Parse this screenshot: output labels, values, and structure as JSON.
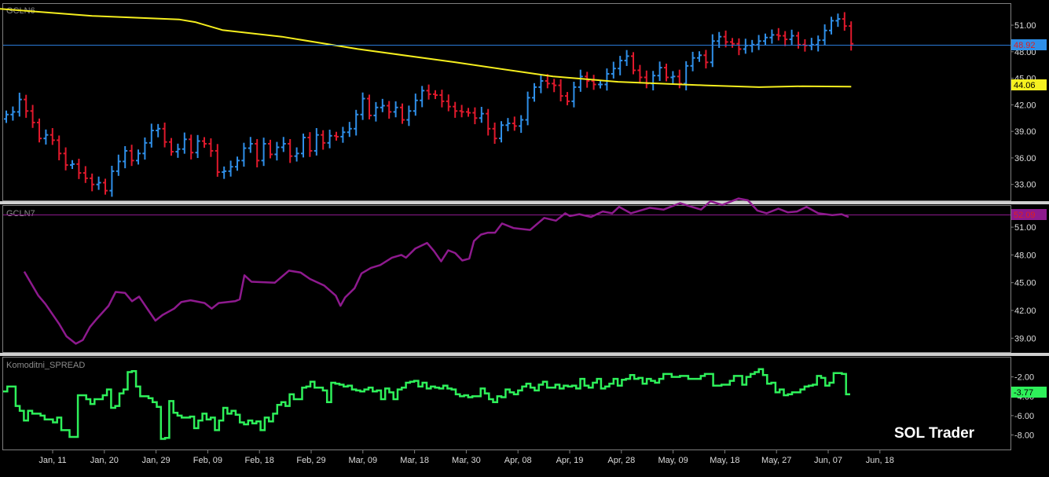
{
  "watermark": "SOL Trader",
  "colors": {
    "background": "#000000",
    "frame": "#7f7f7f",
    "separator": "#d0d0d0",
    "axis_text": "#dcdcdc",
    "up_bar": "#2f8fe8",
    "down_bar": "#e0192c",
    "ma_line": "#f5ee1e",
    "gcln6_last_line": "#2a7ad8",
    "gcln6_last_badge": "#2f8fe8",
    "ma_badge": "#f5f020",
    "gcln7_line": "#8e1a8e",
    "gcln7_badge": "#8e1a8e",
    "spread_line": "#2ef05a",
    "spread_badge": "#2ef05a",
    "watermark": "#ffffff",
    "panel_label": "#8c8c8c"
  },
  "x_axis": {
    "tick_labels": [
      "Jan, 11",
      "Jan, 20",
      "Jan, 29",
      "Feb, 09",
      "Feb, 18",
      "Feb, 29",
      "Mar, 09",
      "Mar, 18",
      "Mar, 30",
      "Apr, 08",
      "Apr, 19",
      "Apr, 28",
      "May, 09",
      "May, 18",
      "May, 27",
      "Jun, 07",
      "Jun, 18"
    ]
  },
  "chart_data": [
    {
      "type": "ohlc",
      "panel_label": "GCLN6",
      "ylim": [
        31.2,
        53.4
      ],
      "y_ticks": [
        "33.00",
        "36.00",
        "39.00",
        "42.00",
        "45.00",
        "48.00",
        "51.00"
      ],
      "last_value_label": "48.92",
      "ma_value_label": "44.06",
      "close": [
        40.9,
        41.2,
        42.6,
        41.3,
        40.0,
        38.2,
        38.6,
        38.0,
        36.5,
        35.2,
        35.3,
        34.3,
        33.7,
        33.0,
        33.2,
        32.3,
        34.5,
        35.6,
        36.8,
        35.7,
        36.5,
        37.7,
        39.1,
        39.3,
        37.8,
        36.7,
        37.0,
        38.1,
        36.6,
        37.9,
        37.6,
        36.8,
        34.4,
        34.5,
        35.0,
        35.7,
        37.1,
        37.6,
        35.7,
        37.6,
        36.4,
        37.2,
        37.6,
        36.2,
        36.5,
        38.3,
        36.8,
        38.6,
        37.7,
        38.5,
        38.4,
        38.9,
        39.3,
        40.9,
        42.7,
        40.8,
        41.7,
        41.9,
        41.2,
        41.7,
        40.3,
        41.3,
        42.5,
        43.6,
        43.2,
        43.1,
        42.4,
        41.8,
        41.3,
        41.2,
        41.1,
        40.5,
        41.0,
        39.3,
        38.2,
        39.7,
        39.9,
        39.6,
        40.3,
        42.8,
        44.0,
        44.7,
        44.4,
        44.2,
        43.0,
        42.4,
        44.0,
        45.2,
        44.7,
        44.3,
        44.3,
        45.5,
        46.1,
        47.0,
        47.5,
        45.9,
        45.1,
        44.4,
        45.3,
        46.2,
        45.1,
        45.2,
        44.4,
        46.4,
        47.3,
        47.6,
        46.8,
        49.2,
        49.7,
        49.1,
        48.9,
        48.3,
        48.7,
        48.8,
        49.2,
        49.6,
        49.9,
        49.8,
        49.4,
        49.8,
        48.8,
        48.7,
        48.8,
        49.3,
        50.4,
        51.5,
        51.7,
        50.9,
        48.9
      ],
      "moving_average": [
        {
          "x": 0,
          "y": 52.85
        },
        {
          "x": 17,
          "y": 52.05
        },
        {
          "x": 33,
          "y": 51.65
        },
        {
          "x": 36,
          "y": 51.35
        },
        {
          "x": 41,
          "y": 50.45
        },
        {
          "x": 52,
          "y": 49.7
        },
        {
          "x": 66,
          "y": 48.3
        },
        {
          "x": 84,
          "y": 46.8
        },
        {
          "x": 102,
          "y": 45.2
        },
        {
          "x": 114,
          "y": 44.6
        },
        {
          "x": 130,
          "y": 44.2
        },
        {
          "x": 140,
          "y": 44.0
        },
        {
          "x": 148,
          "y": 44.1
        },
        {
          "x": 157,
          "y": 44.06
        }
      ]
    },
    {
      "type": "line",
      "panel_label": "GCLN7",
      "ylim": [
        37.5,
        53.3
      ],
      "y_ticks": [
        "39.00",
        "42.00",
        "45.00",
        "48.00",
        "51.00"
      ],
      "last_value_label": "52.09",
      "points": [
        {
          "x": 3,
          "y": 46.2
        },
        {
          "x": 9,
          "y": 43.6
        },
        {
          "x": 12,
          "y": 42.7
        },
        {
          "x": 18,
          "y": 40.5
        },
        {
          "x": 21,
          "y": 39.2
        },
        {
          "x": 25,
          "y": 38.4
        },
        {
          "x": 28,
          "y": 38.8
        },
        {
          "x": 31,
          "y": 40.2
        },
        {
          "x": 34,
          "y": 41.1
        },
        {
          "x": 39,
          "y": 42.5
        },
        {
          "x": 42,
          "y": 44.0
        },
        {
          "x": 46,
          "y": 43.9
        },
        {
          "x": 49,
          "y": 43.0
        },
        {
          "x": 52,
          "y": 43.5
        },
        {
          "x": 56,
          "y": 42.0
        },
        {
          "x": 59,
          "y": 40.9
        },
        {
          "x": 62,
          "y": 41.5
        },
        {
          "x": 67,
          "y": 42.2
        },
        {
          "x": 70,
          "y": 42.9
        },
        {
          "x": 74,
          "y": 43.1
        },
        {
          "x": 80,
          "y": 42.8
        },
        {
          "x": 83,
          "y": 42.2
        },
        {
          "x": 86,
          "y": 42.8
        },
        {
          "x": 93,
          "y": 43.0
        },
        {
          "x": 95,
          "y": 43.2
        },
        {
          "x": 97,
          "y": 45.8
        },
        {
          "x": 100,
          "y": 45.1
        },
        {
          "x": 110,
          "y": 45.0
        },
        {
          "x": 116,
          "y": 46.3
        },
        {
          "x": 121,
          "y": 46.1
        },
        {
          "x": 125,
          "y": 45.4
        },
        {
          "x": 131,
          "y": 44.7
        },
        {
          "x": 136,
          "y": 43.6
        },
        {
          "x": 138,
          "y": 42.5
        },
        {
          "x": 140,
          "y": 43.4
        },
        {
          "x": 144,
          "y": 44.4
        },
        {
          "x": 147,
          "y": 46.0
        },
        {
          "x": 151,
          "y": 46.6
        },
        {
          "x": 155,
          "y": 46.9
        },
        {
          "x": 160,
          "y": 47.7
        },
        {
          "x": 164,
          "y": 48.0
        },
        {
          "x": 166,
          "y": 47.7
        },
        {
          "x": 170,
          "y": 48.7
        },
        {
          "x": 175,
          "y": 49.3
        },
        {
          "x": 178,
          "y": 48.4
        },
        {
          "x": 181,
          "y": 47.3
        },
        {
          "x": 184,
          "y": 48.5
        },
        {
          "x": 187,
          "y": 48.2
        },
        {
          "x": 190,
          "y": 47.4
        },
        {
          "x": 193,
          "y": 47.6
        },
        {
          "x": 195,
          "y": 49.5
        },
        {
          "x": 198,
          "y": 50.2
        },
        {
          "x": 201,
          "y": 50.4
        },
        {
          "x": 204,
          "y": 50.4
        },
        {
          "x": 207,
          "y": 51.4
        },
        {
          "x": 212,
          "y": 50.9
        },
        {
          "x": 219,
          "y": 50.7
        },
        {
          "x": 225,
          "y": 52.0
        },
        {
          "x": 230,
          "y": 51.7
        },
        {
          "x": 234,
          "y": 52.5
        },
        {
          "x": 236,
          "y": 52.2
        },
        {
          "x": 240,
          "y": 52.4
        },
        {
          "x": 245,
          "y": 52.1
        },
        {
          "x": 250,
          "y": 52.7
        },
        {
          "x": 254,
          "y": 52.5
        },
        {
          "x": 257,
          "y": 53.2
        },
        {
          "x": 262,
          "y": 52.5
        },
        {
          "x": 266,
          "y": 52.8
        },
        {
          "x": 270,
          "y": 53.1
        },
        {
          "x": 276,
          "y": 52.9
        },
        {
          "x": 283,
          "y": 53.6
        },
        {
          "x": 288,
          "y": 53.2
        },
        {
          "x": 292,
          "y": 52.9
        },
        {
          "x": 296,
          "y": 53.8
        },
        {
          "x": 301,
          "y": 53.4
        },
        {
          "x": 304,
          "y": 53.7
        },
        {
          "x": 308,
          "y": 54.1
        },
        {
          "x": 312,
          "y": 53.9
        },
        {
          "x": 316,
          "y": 52.8
        },
        {
          "x": 320,
          "y": 52.5
        },
        {
          "x": 325,
          "y": 53.0
        },
        {
          "x": 329,
          "y": 52.6
        },
        {
          "x": 333,
          "y": 52.7
        },
        {
          "x": 337,
          "y": 53.2
        },
        {
          "x": 342,
          "y": 52.5
        },
        {
          "x": 348,
          "y": 52.3
        },
        {
          "x": 352,
          "y": 52.4
        },
        {
          "x": 355,
          "y": 52.09
        }
      ]
    },
    {
      "type": "step",
      "panel_label": "Komoditni_SPREAD",
      "ylim": [
        -9.5,
        0.0
      ],
      "y_ticks": [
        "-2.00",
        "-4.00",
        "-6.00",
        "-8.00"
      ],
      "last_value_label": "-3.77",
      "values": [
        -3.5,
        -3.0,
        -3.0,
        -5.0,
        -5.5,
        -6.5,
        -5.5,
        -5.8,
        -5.8,
        -6.0,
        -6.4,
        -6.4,
        -6.7,
        -6.2,
        -7.5,
        -7.5,
        -8.2,
        -8.2,
        -3.9,
        -3.9,
        -4.3,
        -4.8,
        -4.3,
        -4.3,
        -3.9,
        -3.3,
        -5.2,
        -5.0,
        -3.7,
        -3.3,
        -1.5,
        -1.4,
        -3.0,
        -4.0,
        -4.0,
        -4.2,
        -4.6,
        -5.1,
        -8.4,
        -8.3,
        -4.5,
        -5.7,
        -6.0,
        -6.2,
        -6.2,
        -6.1,
        -7.3,
        -6.5,
        -5.8,
        -6.4,
        -6.2,
        -7.5,
        -6.5,
        -5.2,
        -5.8,
        -5.5,
        -5.9,
        -6.7,
        -6.9,
        -6.5,
        -6.8,
        -6.6,
        -7.5,
        -6.2,
        -6.6,
        -5.8,
        -4.9,
        -4.6,
        -5.0,
        -3.8,
        -4.3,
        -4.3,
        -3.1,
        -3.0,
        -2.5,
        -3.1,
        -3.1,
        -3.4,
        -4.6,
        -2.6,
        -2.7,
        -2.8,
        -3.0,
        -2.9,
        -3.3,
        -3.4,
        -3.5,
        -3.3,
        -3.1,
        -3.5,
        -3.4,
        -4.3,
        -3.2,
        -3.6,
        -4.3,
        -3.3,
        -3.1,
        -2.6,
        -2.5,
        -2.4,
        -3.0,
        -2.6,
        -3.2,
        -3.0,
        -3.1,
        -3.2,
        -2.9,
        -3.2,
        -3.3,
        -3.8,
        -4.0,
        -3.9,
        -4.1,
        -4.0,
        -4.0,
        -3.2,
        -3.7,
        -4.3,
        -4.6,
        -4.0,
        -4.1,
        -3.3,
        -3.6,
        -3.8,
        -3.4,
        -3.0,
        -2.7,
        -3.1,
        -3.4,
        -2.8,
        -2.5,
        -3.1,
        -3.1,
        -2.8,
        -3.2,
        -2.9,
        -3.0,
        -2.9,
        -3.2,
        -2.2,
        -2.9,
        -3.1,
        -2.6,
        -2.2,
        -3.2,
        -3.0,
        -2.7,
        -2.2,
        -2.9,
        -2.3,
        -2.2,
        -1.8,
        -2.2,
        -2.1,
        -2.7,
        -2.2,
        -2.4,
        -2.6,
        -2.2,
        -1.7,
        -1.7,
        -2.0,
        -2.0,
        -1.9,
        -1.9,
        -2.2,
        -2.2,
        -2.2,
        -1.9,
        -1.7,
        -1.7,
        -2.9,
        -2.9,
        -2.8,
        -2.8,
        -2.4,
        -1.9,
        -1.9,
        -2.8,
        -2.0,
        -1.7,
        -1.5,
        -1.2,
        -1.8,
        -2.7,
        -2.6,
        -3.6,
        -3.3,
        -3.9,
        -3.8,
        -3.6,
        -3.6,
        -3.3,
        -3.0,
        -2.9,
        -2.8,
        -1.9,
        -2.1,
        -2.9,
        -2.6,
        -1.6,
        -1.6,
        -1.7,
        -3.8
      ]
    }
  ]
}
